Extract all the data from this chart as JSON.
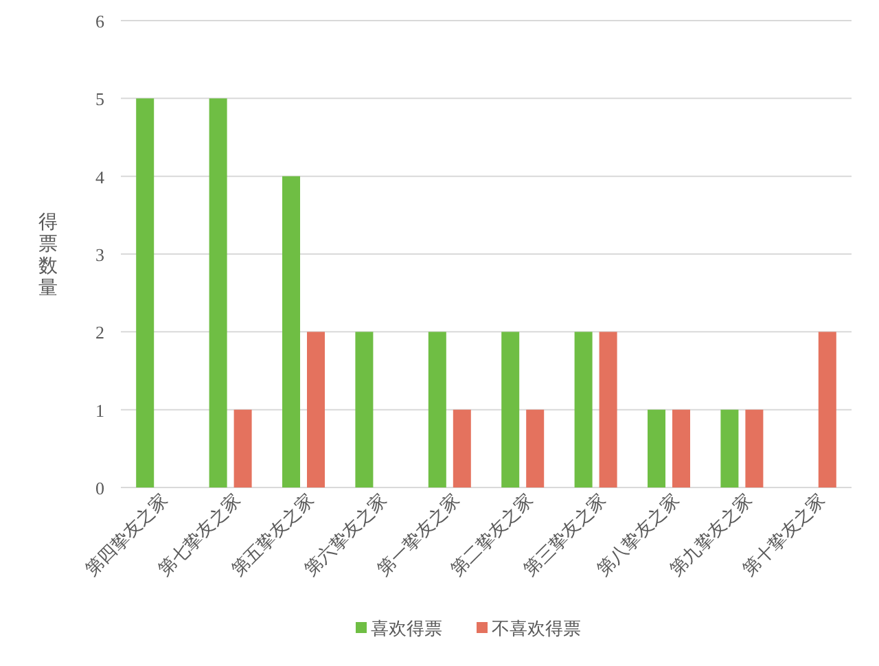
{
  "chart_data": {
    "type": "bar",
    "ylabel": "得票数量",
    "categories": [
      "第四挚友之家",
      "第七挚友之家",
      "第五挚友之家",
      "第六挚友之家",
      "第一挚友之家",
      "第二挚友之家",
      "第三挚友之家",
      "第八挚友之家",
      "第九挚友之家",
      "第十挚友之家"
    ],
    "series": [
      {
        "name": "喜欢得票",
        "color": "#6fbe44",
        "values": [
          5,
          5,
          4,
          2,
          2,
          2,
          2,
          1,
          1,
          0
        ]
      },
      {
        "name": "不喜欢得票",
        "color": "#e4725e",
        "values": [
          0,
          1,
          2,
          0,
          1,
          1,
          2,
          1,
          1,
          2
        ]
      }
    ],
    "ylim": [
      0,
      6
    ],
    "yticks": [
      0,
      1,
      2,
      3,
      4,
      5,
      6
    ],
    "grid": "y",
    "legend": "bottom"
  }
}
